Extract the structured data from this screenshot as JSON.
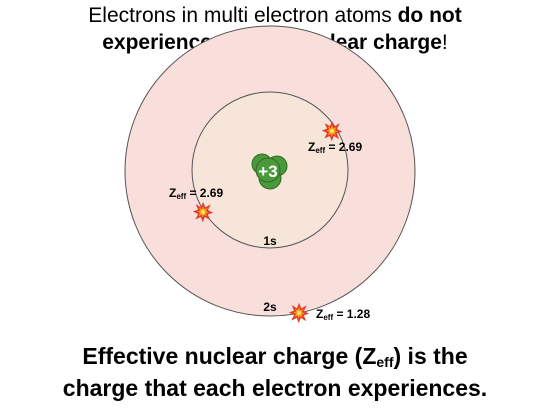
{
  "heading": {
    "part1": "Electrons in multi electron atoms ",
    "bold1": "do not",
    "bold2": "experience the full nuclear charge",
    "end": "!"
  },
  "nucleus": {
    "label": "+3"
  },
  "shells": {
    "inner_label": "1s",
    "outer_label": "2s"
  },
  "electrons": [
    {
      "z_symbol": "Z",
      "z_sub": "eff",
      "value_text": " = 2.69"
    },
    {
      "z_symbol": "Z",
      "z_sub": "eff",
      "value_text": " = 2.69"
    },
    {
      "z_symbol": "Z",
      "z_sub": "eff",
      "value_text": " = 1.28"
    }
  ],
  "caption": {
    "line1_a": "Effective nuclear charge (Z",
    "line1_sub": "eff",
    "line1_b": ") is the",
    "line2": "charge that each electron experiences."
  },
  "colors": {
    "outer_fill": "#f9dfdc",
    "inner_fill": "#f8e5da",
    "shell_stroke": "#555555",
    "nucleus_fill": "#4a9a3c",
    "nucleus_stroke": "#2f6b25",
    "electron_red": "#e63a2a",
    "electron_orange": "#f7a21b",
    "electron_yellow": "#ffe45c"
  }
}
